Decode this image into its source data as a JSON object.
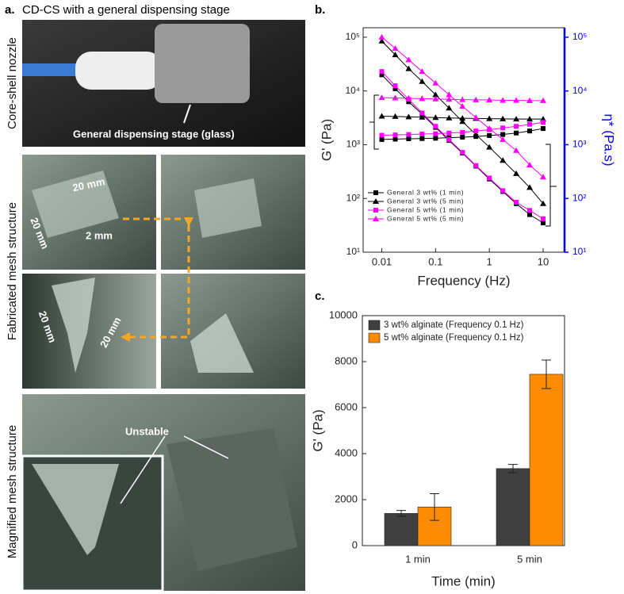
{
  "panel_a": {
    "label": "a.",
    "title": "CD-CS with a general dispensing stage",
    "row_labels": [
      "Core-shell nozzle",
      "Fabricated mesh structure",
      "Magnified mesh structure"
    ],
    "annotations": [
      "General dispensing stage (glass)",
      "20 mm",
      "20 mm",
      "2 mm",
      "20 mm",
      "20 mm",
      "Unstable"
    ]
  },
  "chart_data": [
    {
      "type": "line",
      "panel": "b.",
      "log_x": true,
      "log_y": true,
      "x_label": "Frequency (Hz)",
      "y_label": "G' (Pa)",
      "y2_label": "η* (Pa.s)",
      "y2_color": "#0000ff",
      "x": [
        0.01,
        0.0178,
        0.0316,
        0.0562,
        0.1,
        0.178,
        0.316,
        0.562,
        1,
        1.78,
        3.16,
        5.62,
        10
      ],
      "xlim": [
        0.0045,
        25
      ],
      "xticks": [
        0.01,
        0.1,
        1,
        10
      ],
      "ylim": [
        10,
        150000
      ],
      "yticks": [
        {
          "value": 10,
          "label": "10¹"
        },
        {
          "value": 100,
          "label": "10²"
        },
        {
          "value": 1000,
          "label": "10³"
        },
        {
          "value": 10000,
          "label": "10⁴"
        },
        {
          "value": 100000,
          "label": "10⁵"
        }
      ],
      "y2lim": [
        10,
        150000
      ],
      "y2ticks": [
        {
          "value": 10,
          "label": "10¹"
        },
        {
          "value": 100,
          "label": "10²"
        },
        {
          "value": 1000,
          "label": "10³"
        },
        {
          "value": 10000,
          "label": "10⁴"
        },
        {
          "value": 100000,
          "label": "10⁵"
        }
      ],
      "legend": "lower-left",
      "series": [
        {
          "name": "General 3 wt% (1 min)",
          "color": "#000000",
          "marker": "square",
          "values": [
            1250,
            1270,
            1290,
            1300,
            1320,
            1350,
            1380,
            1420,
            1480,
            1550,
            1650,
            1800,
            2000
          ],
          "y2_values": [
            20000,
            11000,
            6300,
            3700,
            2100,
            1200,
            700,
            400,
            230,
            135,
            80,
            50,
            35
          ]
        },
        {
          "name": "General 3 wt% (5 min)",
          "color": "#000000",
          "marker": "triangle",
          "values": [
            3400,
            3350,
            3300,
            3250,
            3200,
            3150,
            3100,
            3080,
            3050,
            3030,
            3000,
            3000,
            3000
          ],
          "y2_values": [
            85000,
            47000,
            26000,
            15000,
            8500,
            4800,
            2700,
            1550,
            900,
            510,
            290,
            160,
            80
          ]
        },
        {
          "name": "General 5 wt% (1 min)",
          "color": "#ff00ff",
          "marker": "square",
          "values": [
            1500,
            1520,
            1550,
            1580,
            1600,
            1650,
            1700,
            1800,
            1900,
            2050,
            2200,
            2400,
            2600
          ],
          "y2_values": [
            23000,
            12500,
            7000,
            3900,
            2200,
            1250,
            720,
            410,
            240,
            140,
            85,
            60,
            42
          ]
        },
        {
          "name": "General 5 wt% (5 min)",
          "color": "#ff00ff",
          "marker": "triangle",
          "values": [
            7500,
            7400,
            7300,
            7200,
            7100,
            7000,
            6900,
            6850,
            6800,
            6700,
            6700,
            6600,
            6600
          ],
          "y2_values": [
            100000,
            62000,
            38000,
            23000,
            14000,
            8500,
            5200,
            3200,
            2000,
            1250,
            780,
            420,
            250
          ]
        }
      ]
    },
    {
      "type": "bar",
      "panel": "c.",
      "x_label": "Time (min)",
      "y_label": "G' (Pa)",
      "categories": [
        "1 min",
        "5 min"
      ],
      "ylim": [
        0,
        10000
      ],
      "yticks": [
        0,
        2000,
        4000,
        6000,
        8000,
        10000
      ],
      "legend": "upper-left",
      "series": [
        {
          "name": "3 wt% alginate (Frequency 0.1 Hz)",
          "color": "#404040",
          "values": [
            1400,
            3350
          ],
          "errors": [
            130,
            180
          ]
        },
        {
          "name": "5 wt% alginate (Frequency 0.1 Hz)",
          "color": "#ff8c00",
          "values": [
            1680,
            7450
          ],
          "errors": [
            580,
            620
          ]
        }
      ]
    }
  ]
}
